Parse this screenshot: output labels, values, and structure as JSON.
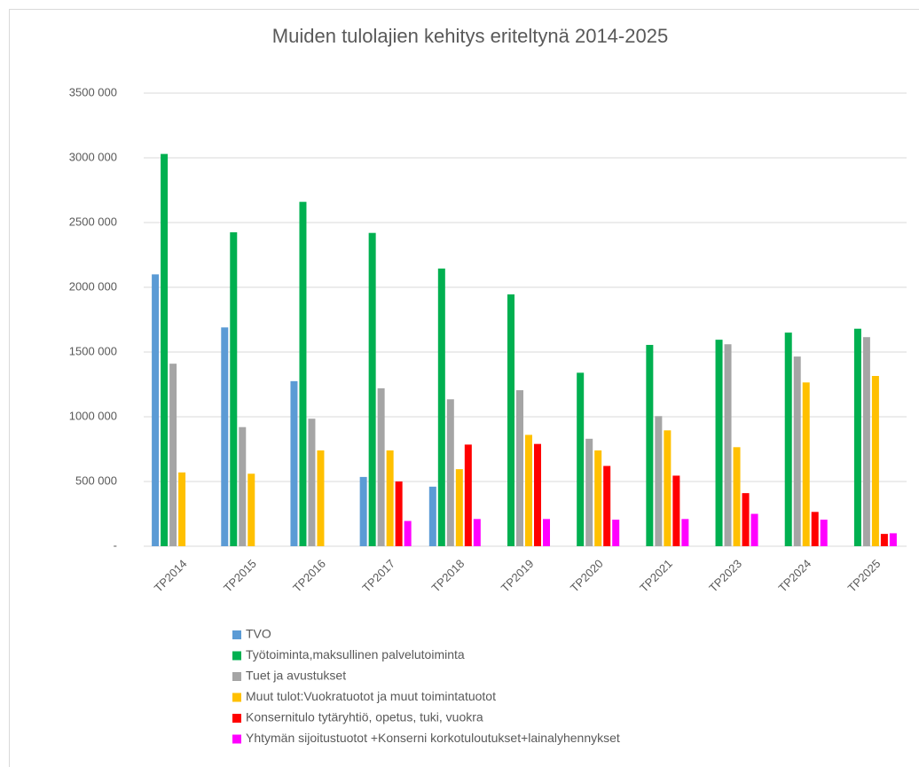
{
  "chart_data": {
    "type": "bar",
    "title": "Muiden tulolajien kehitys eriteltynä 2014-2025",
    "categories": [
      "TP2014",
      "TP2015",
      "TP2016",
      "TP2017",
      "TP2018",
      "TP2019",
      "TP2020",
      "TP2021",
      "TP2023",
      "TP2024",
      "TP2025"
    ],
    "series": [
      {
        "name": "TVO",
        "color": "#5b9bd5",
        "values": [
          2100000,
          1690000,
          1275000,
          535000,
          460000,
          null,
          null,
          null,
          null,
          null,
          null
        ]
      },
      {
        "name": "Työtoiminta,maksullinen palvelutoiminta",
        "color": "#00b050",
        "values": [
          3030000,
          2425000,
          2660000,
          2420000,
          2145000,
          1945000,
          1340000,
          1555000,
          1595000,
          1650000,
          1680000
        ]
      },
      {
        "name": "Tuet ja avustukset",
        "color": "#a5a5a5",
        "values": [
          1410000,
          920000,
          985000,
          1220000,
          1135000,
          1205000,
          830000,
          1005000,
          1560000,
          1465000,
          1615000
        ]
      },
      {
        "name": "Muut tulot:Vuokratuotot ja muut toimintatuotot",
        "color": "#ffc000",
        "values": [
          570000,
          560000,
          740000,
          740000,
          595000,
          860000,
          740000,
          895000,
          765000,
          1265000,
          1315000
        ]
      },
      {
        "name": "Konsernitulo tytäryhtiö, opetus, tuki, vuokra",
        "color": "#ff0000",
        "values": [
          null,
          null,
          null,
          500000,
          785000,
          790000,
          620000,
          545000,
          410000,
          265000,
          95000
        ]
      },
      {
        "name": "Yhtymän sijoitustuotot +Konserni korkotuloutukset+lainalyhennykset",
        "color": "#ff00ff",
        "values": [
          null,
          null,
          null,
          195000,
          210000,
          210000,
          205000,
          210000,
          250000,
          205000,
          100000
        ]
      }
    ],
    "ylim": [
      0,
      3500000
    ],
    "yticks": [
      {
        "value": 0,
        "label": "-"
      },
      {
        "value": 500000,
        "label": "500 000"
      },
      {
        "value": 1000000,
        "label": "1000 000"
      },
      {
        "value": 1500000,
        "label": "1500 000"
      },
      {
        "value": 2000000,
        "label": "2000 000"
      },
      {
        "value": 2500000,
        "label": "2500 000"
      },
      {
        "value": 3000000,
        "label": "3000 000"
      },
      {
        "value": 3500000,
        "label": "3500 000"
      }
    ],
    "grid": true,
    "legend": "bottom"
  }
}
